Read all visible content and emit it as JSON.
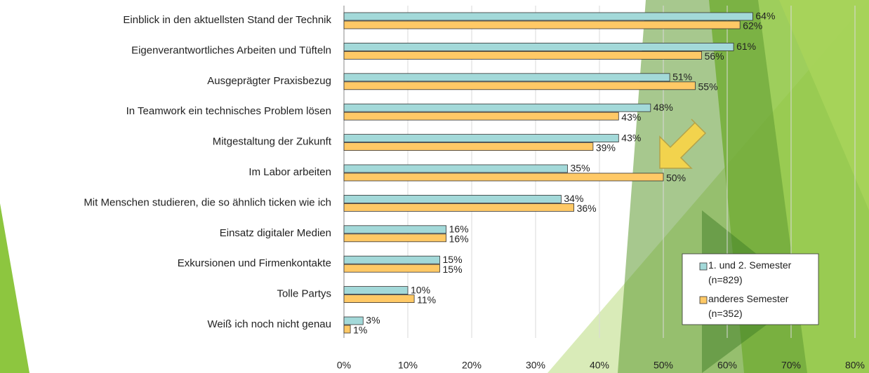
{
  "chart_data": {
    "type": "bar",
    "orientation": "horizontal",
    "categories": [
      "Einblick in den aktuellsten Stand der Technik",
      "Eigenverantwortliches Arbeiten und Tüfteln",
      "Ausgeprägter Praxisbezug",
      "In Teamwork ein technisches Problem lösen",
      "Mitgestaltung der Zukunft",
      "Im Labor arbeiten",
      "Mit Menschen studieren, die so ähnlich ticken wie ich",
      "Einsatz digitaler Medien",
      "Exkursionen und Firmenkontakte",
      "Tolle Partys",
      "Weiß ich noch nicht genau"
    ],
    "series": [
      {
        "name": "1. und 2. Semester (n=829)",
        "color": "#a3d9d9",
        "values": [
          64,
          61,
          51,
          48,
          43,
          35,
          34,
          16,
          15,
          10,
          3
        ],
        "value_labels": [
          "64%",
          "61%",
          "51%",
          "48%",
          "43%",
          "35%",
          "34%",
          "16%",
          "15%",
          "10%",
          "3%"
        ]
      },
      {
        "name": "anderes Semester (n=352)",
        "color": "#ffc966",
        "values": [
          62,
          56,
          55,
          43,
          39,
          50,
          36,
          16,
          15,
          11,
          1
        ],
        "value_labels": [
          "62%",
          "56%",
          "55%",
          "43%",
          "39%",
          "50%",
          "36%",
          "16%",
          "15%",
          "11%",
          "1%"
        ]
      }
    ],
    "xlim": [
      0,
      80
    ],
    "xticks": [
      {
        "value": 0,
        "label": "0%"
      },
      {
        "value": 10,
        "label": "10%"
      },
      {
        "value": 20,
        "label": "20%"
      },
      {
        "value": 30,
        "label": "30%"
      },
      {
        "value": 40,
        "label": "40%"
      },
      {
        "value": 50,
        "label": "50%"
      },
      {
        "value": 60,
        "label": "60%"
      },
      {
        "value": 70,
        "label": "70%"
      },
      {
        "value": 80,
        "label": "80%"
      }
    ],
    "grid": true,
    "legend": "lower right"
  }
}
